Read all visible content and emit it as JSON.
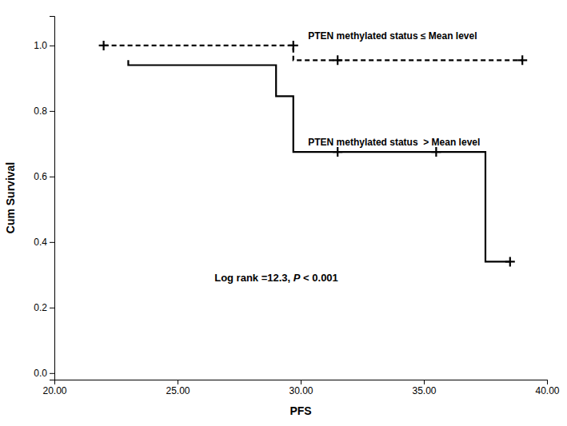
{
  "chart_data": {
    "type": "step",
    "x_label": "PFS",
    "y_label": "Cum Survival",
    "xlim": [
      20.0,
      40.0
    ],
    "ylim": [
      -0.02,
      1.09
    ],
    "xticks": [
      {
        "value": 20.0,
        "label": "20.00"
      },
      {
        "value": 25.0,
        "label": "25.00"
      },
      {
        "value": 30.0,
        "label": "30.00"
      },
      {
        "value": 35.0,
        "label": "35.00"
      },
      {
        "value": 40.0,
        "label": "40.00"
      }
    ],
    "yticks": [
      {
        "value": 0.0,
        "label": "0.0"
      },
      0.2,
      0.4,
      0.6,
      0.8,
      {
        "value": 1.0,
        "label": "1.0"
      }
    ],
    "grid": false,
    "series": [
      {
        "name": "PTEN methylated status ≤ Mean level",
        "color": "#000000",
        "line_style": "dashed",
        "marker": "plus",
        "label_xy": [
          30.3,
          1.01
        ],
        "x": [
          22.0,
          29.7,
          29.7,
          31.5,
          31.5,
          39.0
        ],
        "values": [
          1.0,
          1.0,
          0.955,
          0.955,
          0.955,
          0.955
        ],
        "censor_x": [
          22.0,
          29.7,
          31.5,
          39.0
        ],
        "censor_values": [
          1.0,
          1.0,
          0.955,
          0.955
        ]
      },
      {
        "name": "PTEN methylated status  > Mean level",
        "color": "#000000",
        "line_style": "solid",
        "marker": "plus",
        "label_xy": [
          30.3,
          0.72
        ],
        "x": [
          23.0,
          23.0,
          29.0,
          29.0,
          29.7,
          29.7,
          31.5,
          31.5,
          37.5,
          37.5,
          38.5
        ],
        "values": [
          0.955,
          0.94,
          0.94,
          0.845,
          0.845,
          0.675,
          0.675,
          0.675,
          0.675,
          0.34,
          0.34
        ],
        "censor_x": [
          31.5,
          35.5,
          38.5
        ],
        "censor_values": [
          0.675,
          0.675,
          0.34
        ]
      }
    ],
    "annotation": {
      "text": [
        "Log rank =12.3, ",
        "P",
        " < 0.001"
      ],
      "x": 26.5,
      "y": 0.29
    }
  }
}
